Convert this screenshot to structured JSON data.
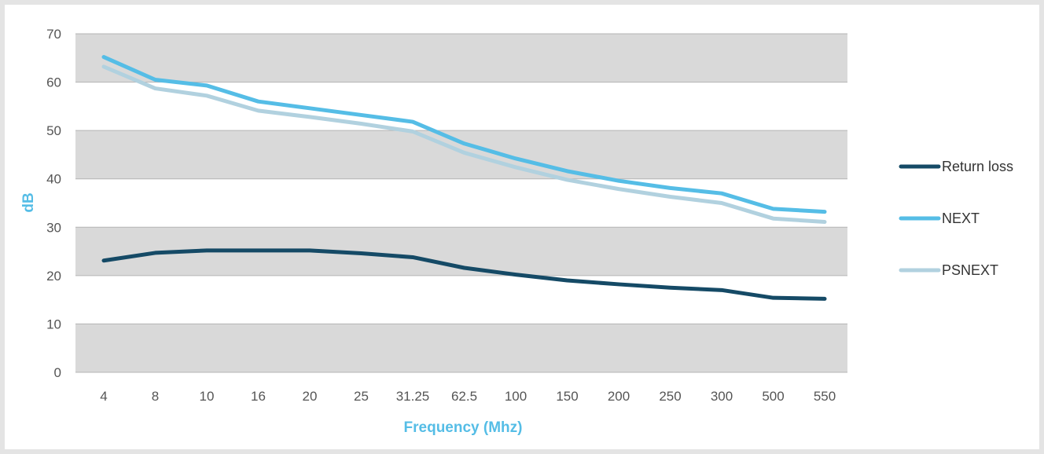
{
  "chart_data": {
    "type": "line",
    "categories": [
      "4",
      "8",
      "10",
      "16",
      "20",
      "25",
      "31.25",
      "62.5",
      "100",
      "150",
      "200",
      "250",
      "300",
      "500",
      "550"
    ],
    "series": [
      {
        "name": "Return loss",
        "color": "#154a66",
        "values": [
          23.1,
          24.7,
          25.2,
          25.2,
          25.2,
          24.6,
          23.8,
          21.6,
          20.2,
          19.0,
          18.2,
          17.5,
          17.0,
          15.4,
          15.2
        ]
      },
      {
        "name": "NEXT",
        "color": "#55bde6",
        "values": [
          65.2,
          60.5,
          59.3,
          56.0,
          54.6,
          53.2,
          51.8,
          47.3,
          44.2,
          41.6,
          39.6,
          38.1,
          37.0,
          33.8,
          33.2
        ]
      },
      {
        "name": "PSNEXT",
        "color": "#b1d1df",
        "values": [
          63.2,
          58.7,
          57.2,
          54.1,
          52.8,
          51.4,
          49.8,
          45.4,
          42.4,
          39.8,
          37.9,
          36.3,
          35.0,
          31.8,
          31.1
        ]
      }
    ],
    "xlabel": "Frequency (Mhz)",
    "ylabel": "dB",
    "ylim": [
      0,
      70
    ],
    "yticks": [
      0,
      10,
      20,
      30,
      40,
      50,
      60,
      70
    ],
    "grid": true,
    "band_color": "#d9d9d9",
    "axis_title_color": "#55bde6",
    "legend_position": "right"
  }
}
